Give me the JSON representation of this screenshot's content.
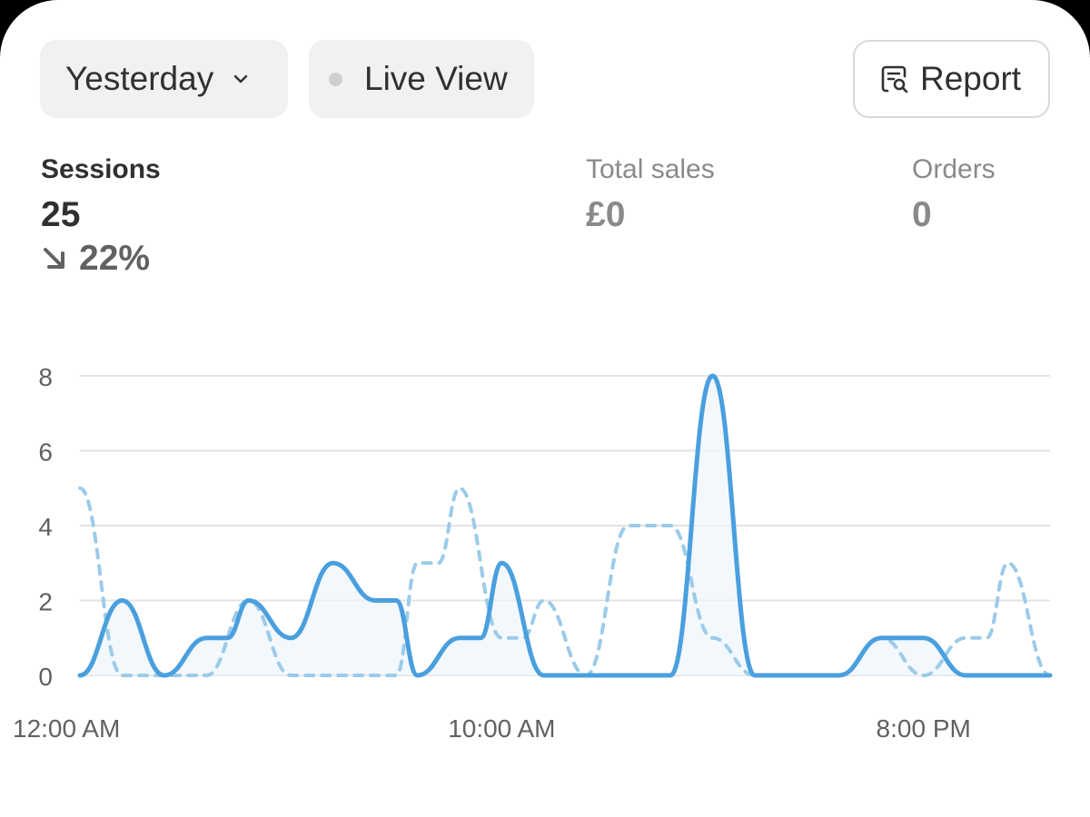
{
  "toolbar": {
    "date_range_label": "Yesterday",
    "live_view_label": "Live View",
    "report_label": "Report"
  },
  "metrics": {
    "sessions": {
      "label": "Sessions",
      "value": "25",
      "change": "22%",
      "change_direction": "down"
    },
    "total_sales": {
      "label": "Total sales",
      "value": "£0"
    },
    "orders": {
      "label": "Orders",
      "value": "0"
    }
  },
  "colors": {
    "series_current": "#4a9fde",
    "series_comparison": "#9ccbe9",
    "gridline": "#e3e3e3",
    "muted_text": "#8a8a8a"
  },
  "icons": {
    "date_range": "chevron-down-icon",
    "live_view": "status-dot-icon",
    "report": "report-search-icon",
    "change": "arrow-down-right-icon"
  },
  "chart_data": {
    "type": "line",
    "x_tick_labels": [
      "12:00 AM",
      "10:00 AM",
      "8:00 PM"
    ],
    "x_tick_hours": [
      0,
      10,
      20
    ],
    "ylim": [
      0,
      8
    ],
    "y_ticks": [
      0,
      2,
      4,
      6,
      8
    ],
    "grid": true,
    "series": [
      {
        "style": "solid",
        "x": [
          0,
          1,
          2,
          3,
          3.5,
          4,
          5,
          6,
          7,
          7.5,
          8,
          9,
          9.5,
          10,
          11,
          12,
          13,
          14,
          15,
          16,
          17,
          18,
          19,
          20,
          21,
          22,
          23
        ],
        "values": [
          0,
          2,
          0,
          1,
          1,
          2,
          1,
          3,
          2,
          2,
          0,
          1,
          1,
          3,
          0,
          0,
          0,
          0,
          8,
          0,
          0,
          0,
          1,
          1,
          0,
          0,
          0
        ]
      },
      {
        "style": "dashed",
        "x": [
          0,
          1,
          2,
          3,
          4,
          5,
          6,
          7,
          7.5,
          8,
          8.5,
          9,
          10,
          10.5,
          11,
          12,
          13,
          14,
          15,
          16,
          17,
          18,
          19,
          20,
          21,
          21.5,
          22,
          23
        ],
        "values": [
          5,
          0,
          0,
          0,
          2,
          0,
          0,
          0,
          0,
          3,
          3,
          5,
          1,
          1,
          2,
          0,
          4,
          4,
          1,
          0,
          0,
          0,
          1,
          0,
          1,
          1,
          3,
          0
        ]
      }
    ]
  }
}
